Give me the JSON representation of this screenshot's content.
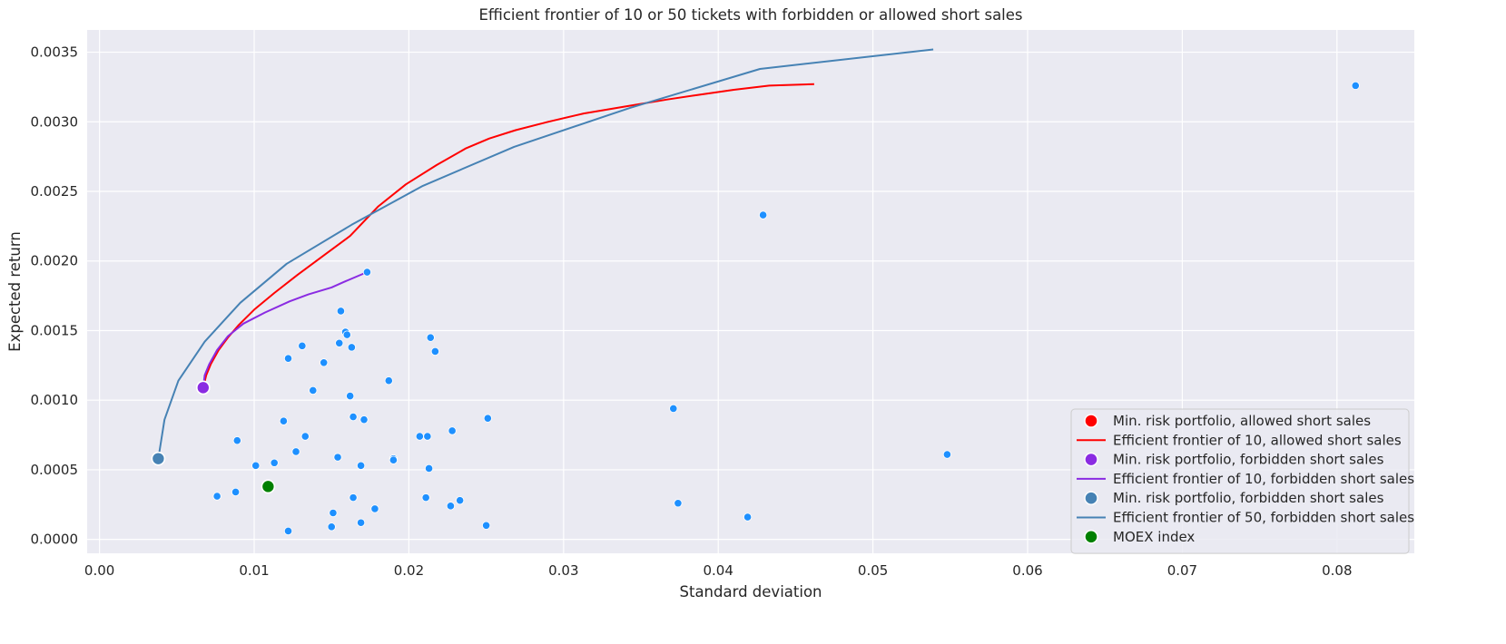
{
  "chart_data": {
    "type": "scatter",
    "title": "Efficient frontier of 10 or 50 tickets with forbidden or allowed short sales",
    "xlabel": "Standard deviation",
    "ylabel": "Expected return",
    "xlim": [
      -0.0008,
      0.085
    ],
    "ylim": [
      -0.0001,
      0.00366
    ],
    "xticks": [
      0.0,
      0.01,
      0.02,
      0.03,
      0.04,
      0.05,
      0.06,
      0.07,
      0.08
    ],
    "xtick_labels": [
      "0.00",
      "0.01",
      "0.02",
      "0.03",
      "0.04",
      "0.05",
      "0.06",
      "0.07",
      "0.08"
    ],
    "yticks": [
      0.0,
      0.0005,
      0.001,
      0.0015,
      0.002,
      0.0025,
      0.003,
      0.0035
    ],
    "ytick_labels": [
      "0.0000",
      "0.0005",
      "0.0010",
      "0.0015",
      "0.0020",
      "0.0025",
      "0.0030",
      "0.0035"
    ],
    "grid": true,
    "background": "#eaeaf2",
    "legend_position": "lower-right",
    "tickers": {
      "color": "#1e90ff",
      "points": [
        [
          0.0076,
          0.00031
        ],
        [
          0.0088,
          0.00034
        ],
        [
          0.0089,
          0.00071
        ],
        [
          0.0101,
          0.00053
        ],
        [
          0.0113,
          0.00055
        ],
        [
          0.0119,
          0.00085
        ],
        [
          0.0122,
          6e-05
        ],
        [
          0.0122,
          0.0013
        ],
        [
          0.0127,
          0.00063
        ],
        [
          0.0131,
          0.00139
        ],
        [
          0.0133,
          0.00074
        ],
        [
          0.0138,
          0.00107
        ],
        [
          0.0145,
          0.00127
        ],
        [
          0.015,
          9e-05
        ],
        [
          0.0151,
          0.00019
        ],
        [
          0.0154,
          0.00059
        ],
        [
          0.0155,
          0.00141
        ],
        [
          0.0156,
          0.00164
        ],
        [
          0.0159,
          0.00149
        ],
        [
          0.016,
          0.00147
        ],
        [
          0.0162,
          0.00103
        ],
        [
          0.0163,
          0.00138
        ],
        [
          0.0164,
          0.00088
        ],
        [
          0.0164,
          0.0003
        ],
        [
          0.0169,
          0.00053
        ],
        [
          0.0169,
          0.00012
        ],
        [
          0.0171,
          0.00086
        ],
        [
          0.0173,
          0.00192
        ],
        [
          0.0178,
          0.00022
        ],
        [
          0.0187,
          0.00114
        ],
        [
          0.019,
          0.00058
        ],
        [
          0.019,
          0.00057
        ],
        [
          0.0207,
          0.00074
        ],
        [
          0.0211,
          0.0003
        ],
        [
          0.0212,
          0.00074
        ],
        [
          0.0213,
          0.00051
        ],
        [
          0.0214,
          0.00145
        ],
        [
          0.0217,
          0.00135
        ],
        [
          0.0227,
          0.00024
        ],
        [
          0.0228,
          0.00078
        ],
        [
          0.0233,
          0.00028
        ],
        [
          0.025,
          0.0001
        ],
        [
          0.0251,
          0.00087
        ],
        [
          0.0371,
          0.00094
        ],
        [
          0.0374,
          0.00026
        ],
        [
          0.0419,
          0.00016
        ],
        [
          0.0429,
          0.00233
        ],
        [
          0.0548,
          0.00061
        ],
        [
          0.0812,
          0.00326
        ]
      ]
    },
    "series": [
      {
        "name": "Min. risk portfolio, allowed short sales",
        "kind": "marker",
        "color": "#ff0000",
        "points": [
          [
            0.0067,
            0.00109
          ]
        ]
      },
      {
        "name": "Efficient frontier of 10, allowed short sales",
        "kind": "line",
        "color": "#ff0000",
        "points": [
          [
            0.0067,
            0.00109
          ],
          [
            0.0069,
            0.00118
          ],
          [
            0.0072,
            0.00126
          ],
          [
            0.0077,
            0.00136
          ],
          [
            0.0083,
            0.00145
          ],
          [
            0.009,
            0.00154
          ],
          [
            0.01,
            0.00165
          ],
          [
            0.0113,
            0.00177
          ],
          [
            0.0128,
            0.0019
          ],
          [
            0.0145,
            0.00204
          ],
          [
            0.0162,
            0.00218
          ],
          [
            0.018,
            0.00239
          ],
          [
            0.0198,
            0.00255
          ],
          [
            0.0218,
            0.00269
          ],
          [
            0.0237,
            0.00281
          ],
          [
            0.0252,
            0.00288
          ],
          [
            0.0269,
            0.00294
          ],
          [
            0.029,
            0.003
          ],
          [
            0.0313,
            0.00306
          ],
          [
            0.034,
            0.00311
          ],
          [
            0.0367,
            0.00316
          ],
          [
            0.0385,
            0.00319
          ],
          [
            0.041,
            0.00323
          ],
          [
            0.0433,
            0.00326
          ],
          [
            0.0462,
            0.00327
          ]
        ]
      },
      {
        "name": "Min. risk portfolio, forbidden short sales",
        "kind": "marker",
        "color": "#8a2be2",
        "points": [
          [
            0.0067,
            0.00109
          ]
        ]
      },
      {
        "name": "Efficient frontier of 10, forbidden short sales",
        "kind": "line",
        "color": "#8a2be2",
        "points": [
          [
            0.0067,
            0.00109
          ],
          [
            0.0068,
            0.00118
          ],
          [
            0.0071,
            0.00126
          ],
          [
            0.0076,
            0.00136
          ],
          [
            0.0083,
            0.00146
          ],
          [
            0.0093,
            0.00155
          ],
          [
            0.0107,
            0.00163
          ],
          [
            0.0123,
            0.00171
          ],
          [
            0.0135,
            0.00176
          ],
          [
            0.015,
            0.00181
          ],
          [
            0.0158,
            0.00185
          ],
          [
            0.0173,
            0.00192
          ]
        ]
      },
      {
        "name": "Min. risk portfolio, forbidden short sales",
        "kind": "marker",
        "color": "#4682b4",
        "points": [
          [
            0.0038,
            0.00058
          ]
        ]
      },
      {
        "name": "Efficient frontier of 50, forbidden short sales",
        "kind": "line",
        "color": "#4682b4",
        "points": [
          [
            0.0038,
            0.00058
          ],
          [
            0.0042,
            0.00086
          ],
          [
            0.0051,
            0.00114
          ],
          [
            0.0068,
            0.00142
          ],
          [
            0.0091,
            0.0017
          ],
          [
            0.0121,
            0.00198
          ],
          [
            0.0163,
            0.00226
          ],
          [
            0.0209,
            0.00254
          ],
          [
            0.0268,
            0.00282
          ],
          [
            0.0343,
            0.0031
          ],
          [
            0.0427,
            0.00338
          ],
          [
            0.0539,
            0.00352
          ]
        ]
      },
      {
        "name": "MOEX index",
        "kind": "marker",
        "color": "#008000",
        "points": [
          [
            0.0109,
            0.00038
          ]
        ]
      }
    ]
  }
}
